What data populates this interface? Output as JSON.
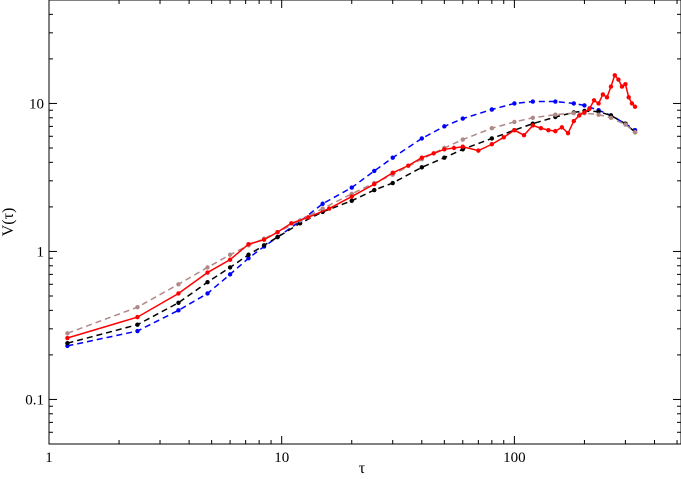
{
  "chart_data": {
    "type": "line",
    "title": "",
    "xlabel": "τ",
    "ylabel": "V(τ)",
    "xscale": "log",
    "yscale": "log",
    "xlim": [
      1,
      520
    ],
    "ylim": [
      0.05,
      50
    ],
    "grid": false,
    "legend": "none",
    "x_ticks": [
      {
        "value": 1,
        "label": "1"
      },
      {
        "value": 10,
        "label": "10"
      },
      {
        "value": 100,
        "label": "100"
      }
    ],
    "y_ticks": [
      {
        "value": 0.1,
        "label": "0.1"
      },
      {
        "value": 1,
        "label": "1"
      },
      {
        "value": 10,
        "label": "10"
      }
    ],
    "series": [
      {
        "color": "#0000ff",
        "dash": "dashed",
        "markers": "dots",
        "x": [
          1.2,
          2.4,
          3.6,
          4.8,
          6,
          7.2,
          8.4,
          9.6,
          12,
          15,
          20,
          25,
          30,
          40,
          50,
          60,
          80,
          100,
          120,
          150,
          180,
          200,
          230,
          260,
          300,
          330
        ],
        "y": [
          0.23,
          0.29,
          0.4,
          0.52,
          0.7,
          0.9,
          1.08,
          1.25,
          1.6,
          2.1,
          2.7,
          3.5,
          4.3,
          5.8,
          7.0,
          7.9,
          9.1,
          10.0,
          10.3,
          10.3,
          10.0,
          9.7,
          9.0,
          8.3,
          7.3,
          6.6
        ]
      },
      {
        "color": "#000000",
        "dash": "dashed",
        "markers": "dots",
        "x": [
          1.2,
          2.4,
          3.6,
          4.8,
          6,
          7.2,
          8.4,
          9.6,
          12,
          15,
          20,
          25,
          30,
          40,
          50,
          60,
          80,
          100,
          120,
          150,
          180,
          200,
          230,
          260,
          300,
          330
        ],
        "y": [
          0.24,
          0.32,
          0.45,
          0.62,
          0.78,
          0.95,
          1.1,
          1.25,
          1.55,
          1.85,
          2.2,
          2.6,
          2.9,
          3.7,
          4.3,
          4.9,
          5.8,
          6.6,
          7.3,
          8.1,
          8.7,
          8.9,
          8.8,
          8.3,
          7.3,
          6.4
        ]
      },
      {
        "color": "#b08888",
        "dash": "dashed",
        "markers": "dots",
        "x": [
          1.2,
          2.4,
          3.6,
          4.8,
          6,
          7.2,
          8.4,
          9.6,
          12,
          15,
          20,
          25,
          30,
          40,
          50,
          60,
          80,
          100,
          120,
          150,
          180,
          200,
          230,
          260,
          300,
          330
        ],
        "y": [
          0.28,
          0.42,
          0.6,
          0.78,
          0.95,
          1.1,
          1.22,
          1.35,
          1.62,
          1.95,
          2.45,
          2.9,
          3.3,
          4.2,
          5.0,
          5.7,
          6.8,
          7.5,
          8.0,
          8.4,
          8.6,
          8.6,
          8.4,
          8.0,
          7.2,
          6.4
        ]
      },
      {
        "color": "#ff0000",
        "dash": "solid",
        "markers": "dots",
        "x": [
          1.2,
          2.4,
          3.6,
          4.8,
          6,
          7.2,
          8.4,
          9.6,
          11,
          13,
          16,
          20,
          25,
          30,
          35,
          40,
          45,
          50,
          55,
          60,
          70,
          80,
          90,
          100,
          110,
          120,
          130,
          140,
          150,
          160,
          170,
          180,
          190,
          200,
          210,
          220,
          230,
          240,
          250,
          260,
          270,
          280,
          290,
          300,
          310,
          320,
          330
        ],
        "y": [
          0.26,
          0.36,
          0.52,
          0.72,
          0.88,
          1.12,
          1.2,
          1.35,
          1.55,
          1.7,
          1.95,
          2.35,
          2.85,
          3.4,
          3.8,
          4.3,
          4.6,
          4.9,
          5.0,
          5.1,
          4.8,
          5.3,
          5.9,
          6.6,
          6.1,
          7.1,
          6.8,
          6.6,
          6.5,
          6.9,
          6.3,
          7.6,
          8.3,
          8.7,
          9.2,
          10.5,
          10.0,
          11.5,
          11.0,
          13.0,
          15.5,
          14.5,
          13.0,
          13.5,
          11.0,
          10.0,
          9.5
        ]
      }
    ]
  }
}
